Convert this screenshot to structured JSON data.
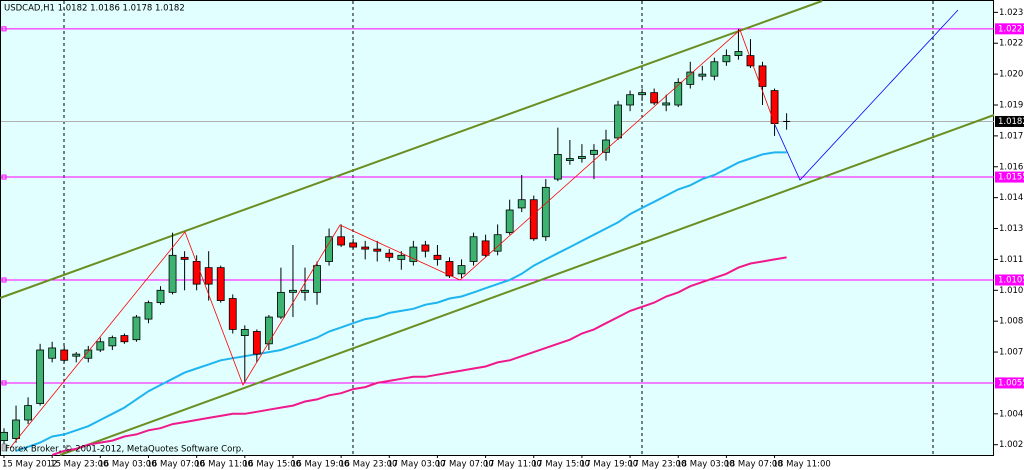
{
  "chart_data": {
    "type": "candlestick",
    "title": "USDCAD,H1  1.0182 1.0186 1.0178 1.0182",
    "footer": "Forex Broker, © 2001-2012, MetaQuotes Software Corp.",
    "categories": [
      "15 May 2012",
      null,
      null,
      null,
      "15 May 23:00",
      null,
      null,
      null,
      "16 May 03:00",
      null,
      null,
      null,
      "16 May 07:00",
      null,
      null,
      null,
      "16 May 11:00",
      null,
      null,
      null,
      "16 May 15:00",
      null,
      null,
      null,
      "16 May 19:00",
      null,
      null,
      null,
      "16 May 23:00",
      null,
      null,
      null,
      "17 May 03:00",
      null,
      null,
      null,
      "17 May 07:00",
      null,
      null,
      null,
      "17 May 11:00",
      null,
      null,
      null,
      "17 May 15:00",
      null,
      null,
      null,
      "17 May 19:00",
      null,
      null,
      null,
      "17 May 23:00",
      null,
      null,
      null,
      "18 May 03:00",
      null,
      null,
      null,
      "18 May 07:00",
      null,
      null,
      null,
      "18 May 11:00",
      null
    ],
    "open": [
      1.0027,
      1.0028,
      1.0037,
      1.0045,
      1.0067,
      1.0071,
      1.0068,
      1.0067,
      1.0071,
      1.0073,
      1.0078,
      1.0076,
      1.0086,
      1.0094,
      1.0099,
      1.0116,
      1.0114,
      1.0111,
      1.0111,
      1.0096,
      1.0078,
      1.008,
      1.0074,
      1.0087,
      1.0099,
      1.0099,
      1.0099,
      1.0114,
      1.0126,
      1.0123,
      1.0121,
      1.012,
      1.0118,
      1.0115,
      1.0114,
      1.0122,
      1.0117,
      1.0114,
      1.0108,
      1.0114,
      1.0124,
      1.0119,
      1.0128,
      1.014,
      1.0144,
      1.0126,
      1.0154,
      1.0163,
      1.0164,
      1.0166,
      1.0167,
      1.0174,
      1.019,
      1.0195,
      1.0196,
      1.019,
      1.019,
      1.02,
      1.0204,
      1.0204,
      1.0211,
      1.0214,
      1.0214,
      1.0209,
      1.0197,
      1.0182
    ],
    "high": [
      1.0033,
      1.0044,
      1.0048,
      1.0074,
      1.0075,
      1.0073,
      1.007,
      1.0073,
      1.0077,
      1.0078,
      1.0079,
      1.0088,
      1.0095,
      1.0102,
      1.0128,
      1.0119,
      1.0117,
      1.0119,
      1.0112,
      1.0098,
      1.0083,
      1.0081,
      1.0088,
      1.0111,
      1.0122,
      1.0111,
      1.0114,
      1.013,
      1.0132,
      1.0125,
      1.0124,
      1.0124,
      1.012,
      1.0119,
      1.0124,
      1.0124,
      1.0122,
      1.0116,
      1.0115,
      1.0128,
      1.0127,
      1.0132,
      1.0144,
      1.0156,
      1.0146,
      1.0154,
      1.0179,
      1.0173,
      1.0171,
      1.0171,
      1.0178,
      1.0192,
      1.0197,
      1.0198,
      1.0198,
      1.0195,
      1.0203,
      1.0211,
      1.0209,
      1.0213,
      1.0217,
      1.0227,
      1.0222,
      1.0211,
      1.0198,
      1.0186
    ],
    "low": [
      1.0025,
      1.0026,
      1.0035,
      1.0044,
      1.0065,
      1.0065,
      1.0065,
      1.0065,
      1.007,
      1.0071,
      1.0074,
      1.0075,
      1.0084,
      1.0093,
      1.0098,
      1.01,
      1.01,
      1.0095,
      1.0094,
      1.0079,
      1.0055,
      1.0065,
      1.0071,
      1.0086,
      1.0087,
      1.0095,
      1.0093,
      1.0112,
      1.0121,
      1.012,
      1.0115,
      1.0114,
      1.0114,
      1.011,
      1.0112,
      1.0116,
      1.0112,
      1.0106,
      1.0106,
      1.0112,
      1.0116,
      1.0117,
      1.0127,
      1.0138,
      1.0124,
      1.0124,
      1.0153,
      1.0161,
      1.0162,
      1.0154,
      1.0163,
      1.0173,
      1.0187,
      1.0192,
      1.019,
      1.0187,
      1.0189,
      1.0198,
      1.0202,
      1.0202,
      1.0209,
      1.0212,
      1.0208,
      1.019,
      1.0175,
      1.0178
    ],
    "close": [
      1.0031,
      1.0037,
      1.0044,
      1.0071,
      1.0072,
      1.0066,
      1.0069,
      1.0071,
      1.0075,
      1.0077,
      1.0075,
      1.0087,
      1.0094,
      1.01,
      1.0117,
      1.0115,
      1.0103,
      1.0103,
      1.0095,
      1.0081,
      1.0081,
      1.0069,
      1.0087,
      1.0099,
      1.01,
      1.01,
      1.0112,
      1.0126,
      1.0122,
      1.0121,
      1.012,
      1.0119,
      1.0116,
      1.0117,
      1.0121,
      1.0119,
      1.0115,
      1.0107,
      1.0112,
      1.0126,
      1.0117,
      1.0127,
      1.0139,
      1.0144,
      1.0125,
      1.015,
      1.0166,
      1.0164,
      1.0165,
      1.0168,
      1.0173,
      1.019,
      1.0195,
      1.0196,
      1.0191,
      1.0191,
      1.0201,
      1.0206,
      1.0205,
      1.0211,
      1.0214,
      1.0216,
      1.0209,
      1.0199,
      1.0181,
      1.0182
    ],
    "bull_color": "#3cb371",
    "bear_color": "#ff0000",
    "moving_averages": [
      {
        "color": "#1eb4f0",
        "values": [
          null,
          1.0022,
          1.0024,
          1.0026,
          1.0029,
          1.003,
          1.0032,
          1.0034,
          1.0037,
          1.004,
          1.0043,
          1.0047,
          1.0051,
          1.0054,
          1.0057,
          1.006,
          1.0062,
          1.0064,
          1.0066,
          1.0067,
          1.0068,
          1.0069,
          1.007,
          1.0071,
          1.0073,
          1.0075,
          1.0077,
          1.008,
          1.0082,
          1.0084,
          1.0086,
          1.0087,
          1.0089,
          1.009,
          1.0091,
          1.0093,
          1.0094,
          1.0096,
          1.0097,
          1.0099,
          1.0101,
          1.0103,
          1.0105,
          1.0108,
          1.0112,
          1.0115,
          1.0118,
          1.0121,
          1.0124,
          1.0127,
          1.013,
          1.0133,
          1.0137,
          1.014,
          1.0143,
          1.0146,
          1.0149,
          1.0151,
          1.0154,
          1.0156,
          1.0159,
          1.0162,
          1.0164,
          1.0166,
          1.0167,
          1.0167
        ]
      },
      {
        "color": "#f0198c",
        "values": [
          null,
          null,
          null,
          null,
          1.002,
          1.0022,
          1.0023,
          1.0025,
          1.0026,
          1.0027,
          1.0029,
          1.003,
          1.0032,
          1.0033,
          1.0035,
          1.0036,
          1.0037,
          1.0038,
          1.0039,
          1.004,
          1.004,
          1.0041,
          1.0042,
          1.0043,
          1.0044,
          1.0046,
          1.0047,
          1.0049,
          1.005,
          1.0052,
          1.0053,
          1.0055,
          1.0056,
          1.0057,
          1.0058,
          1.0058,
          1.0059,
          1.006,
          1.0061,
          1.0062,
          1.0063,
          1.0065,
          1.0066,
          1.0068,
          1.007,
          1.0072,
          1.0074,
          1.0076,
          1.0079,
          1.0081,
          1.0084,
          1.0087,
          1.009,
          1.0092,
          1.0094,
          1.0097,
          1.0099,
          1.0102,
          1.0104,
          1.0106,
          1.0108,
          1.0111,
          1.0113,
          1.0114,
          1.0115,
          1.0116
        ]
      }
    ],
    "levels": [
      1.0227,
      1.0155,
      1.0105,
      1.0055
    ],
    "level_color": "#ff00ff",
    "bid": 1.0182,
    "ylim": [
      1.002,
      1.0241
    ],
    "yticks": [
      1.0235,
      {
        "value": 1.022,
        "label": "1.0220"
      },
      1.0205,
      {
        "value": 1.019,
        "label": "1.0190"
      },
      1.0175,
      {
        "value": 1.016,
        "label": "1.0160"
      },
      1.0145,
      {
        "value": 1.013,
        "label": "1.0130"
      },
      1.0115,
      {
        "value": 1.01,
        "label": "1.0100"
      },
      1.0085,
      {
        "value": 1.007,
        "label": "1.0070"
      },
      {
        "value": 1.004,
        "label": "1.0040"
      },
      1.0025
    ]
  }
}
